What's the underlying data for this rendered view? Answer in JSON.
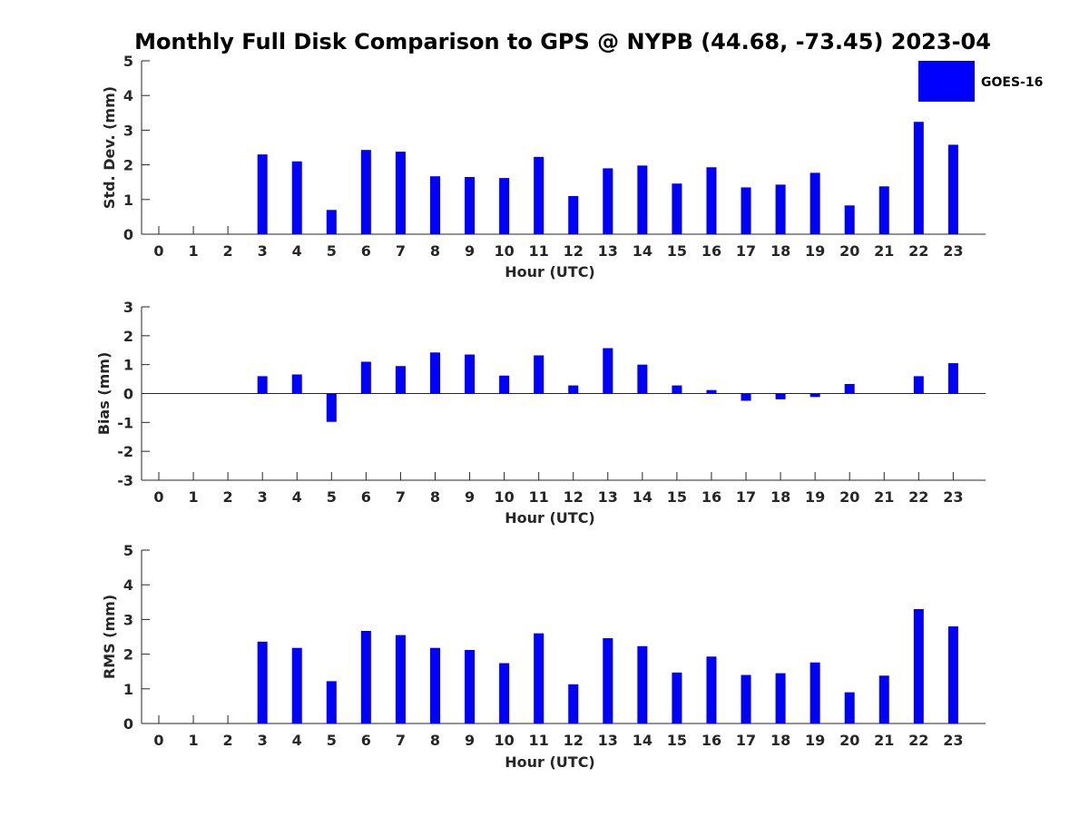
{
  "figure": {
    "title": "Monthly Full Disk Comparison to GPS @ NYPB (44.68, -73.45) 2023-04",
    "legend": {
      "label": "GOES-16",
      "placement": "top-right",
      "color": "#0000ff"
    }
  },
  "chart_data": [
    {
      "type": "bar",
      "name": "std-dev",
      "xlabel": "Hour (UTC)",
      "ylabel": "Std. Dev. (mm)",
      "ylim": [
        0,
        5
      ],
      "yticks": [
        0,
        1,
        2,
        3,
        4,
        5
      ],
      "categories": [
        "0",
        "1",
        "2",
        "3",
        "4",
        "5",
        "6",
        "7",
        "8",
        "9",
        "10",
        "11",
        "12",
        "13",
        "14",
        "15",
        "16",
        "17",
        "18",
        "19",
        "20",
        "21",
        "22",
        "23"
      ],
      "series": [
        {
          "name": "GOES-16",
          "color": "#0000ff",
          "values": [
            null,
            null,
            null,
            2.3,
            2.1,
            0.7,
            2.43,
            2.38,
            1.67,
            1.65,
            1.62,
            2.23,
            1.1,
            1.9,
            1.98,
            1.46,
            1.93,
            1.35,
            1.43,
            1.77,
            0.83,
            1.38,
            3.24,
            2.58
          ]
        }
      ],
      "grid": false
    },
    {
      "type": "bar",
      "name": "bias",
      "xlabel": "Hour (UTC)",
      "ylabel": "Bias (mm)",
      "ylim": [
        -3,
        3
      ],
      "yticks": [
        -3,
        -2,
        -1,
        0,
        1,
        2,
        3
      ],
      "categories": [
        "0",
        "1",
        "2",
        "3",
        "4",
        "5",
        "6",
        "7",
        "8",
        "9",
        "10",
        "11",
        "12",
        "13",
        "14",
        "15",
        "16",
        "17",
        "18",
        "19",
        "20",
        "21",
        "22",
        "23"
      ],
      "series": [
        {
          "name": "GOES-16",
          "color": "#0000ff",
          "values": [
            null,
            null,
            null,
            0.6,
            0.66,
            -0.98,
            1.1,
            0.95,
            1.42,
            1.35,
            0.62,
            1.32,
            0.28,
            1.57,
            1.0,
            0.28,
            0.12,
            -0.25,
            -0.2,
            -0.12,
            0.33,
            null,
            0.6,
            1.05
          ]
        }
      ],
      "zero_line": true,
      "grid": false
    },
    {
      "type": "bar",
      "name": "rms",
      "xlabel": "Hour (UTC)",
      "ylabel": "RMS (mm)",
      "ylim": [
        0,
        5
      ],
      "yticks": [
        0,
        1,
        2,
        3,
        4,
        5
      ],
      "categories": [
        "0",
        "1",
        "2",
        "3",
        "4",
        "5",
        "6",
        "7",
        "8",
        "9",
        "10",
        "11",
        "12",
        "13",
        "14",
        "15",
        "16",
        "17",
        "18",
        "19",
        "20",
        "21",
        "22",
        "23"
      ],
      "series": [
        {
          "name": "GOES-16",
          "color": "#0000ff",
          "values": [
            null,
            null,
            null,
            2.36,
            2.18,
            1.22,
            2.67,
            2.55,
            2.18,
            2.12,
            1.74,
            2.6,
            1.13,
            2.46,
            2.23,
            1.47,
            1.93,
            1.4,
            1.45,
            1.76,
            0.9,
            1.38,
            3.3,
            2.8
          ]
        }
      ],
      "grid": false
    }
  ]
}
